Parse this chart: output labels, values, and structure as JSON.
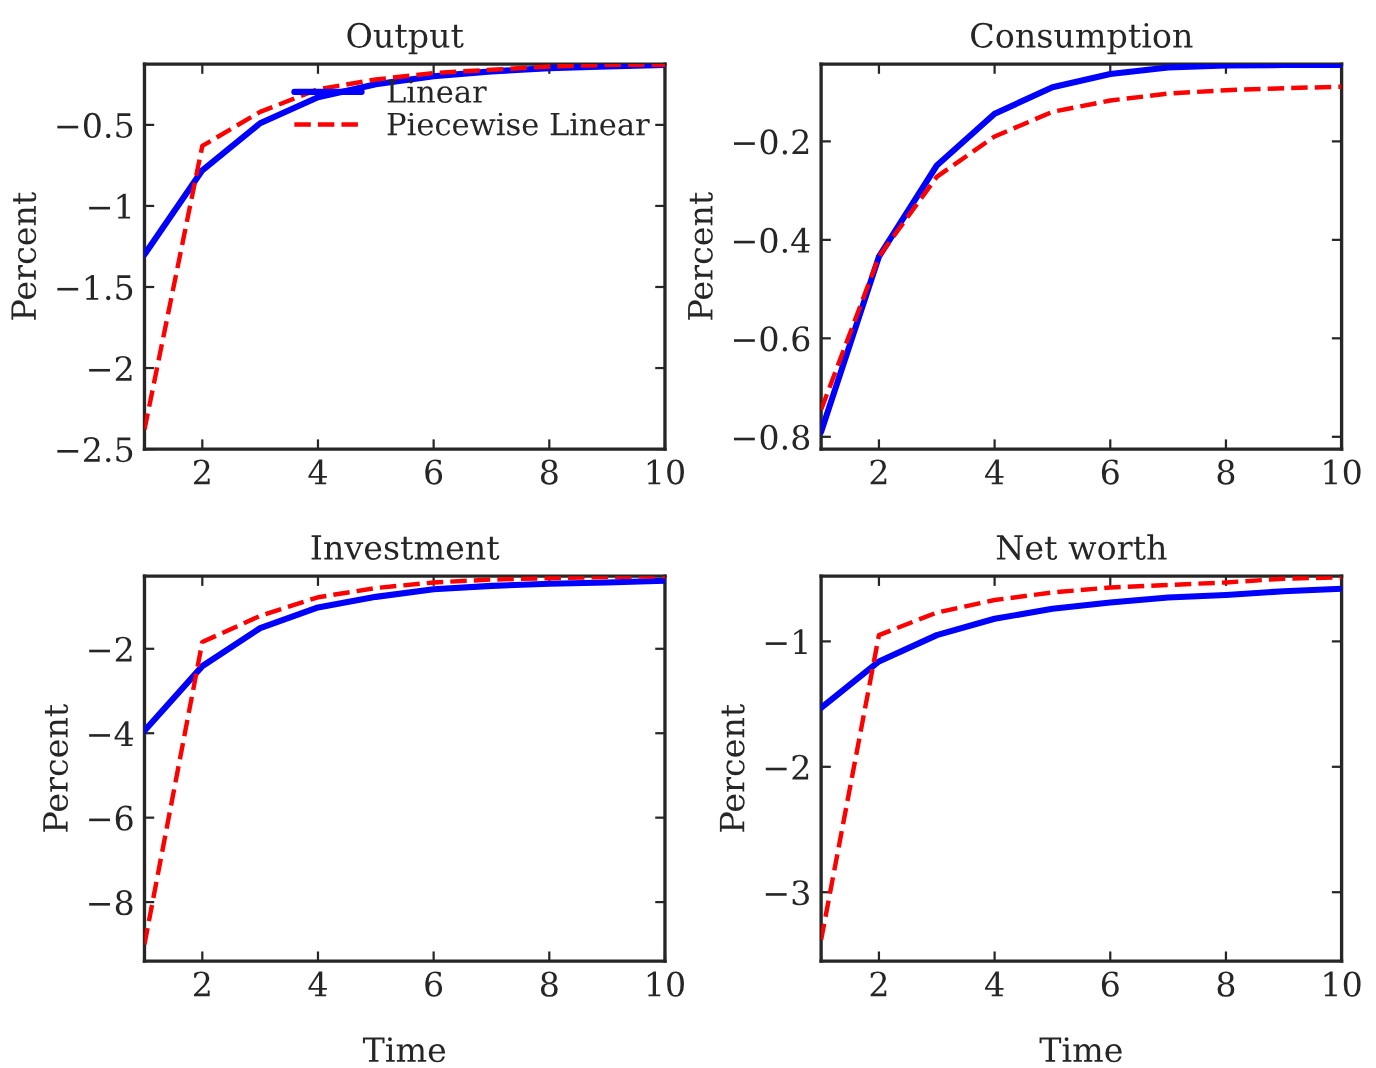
{
  "chart_data": [
    {
      "type": "line",
      "title": "Output",
      "ylabel": "Percent",
      "x": [
        1,
        2,
        3,
        4,
        5,
        6,
        7,
        8,
        9,
        10
      ],
      "xlim": [
        1,
        10
      ],
      "xticks": [
        2,
        4,
        6,
        8,
        10
      ],
      "ylim": [
        -2.5,
        -0.125
      ],
      "yticks": [
        -2.5,
        -2,
        -1.5,
        -1,
        -0.5
      ],
      "legend": "top right",
      "grid": false,
      "series": [
        {
          "name": "Linear",
          "color": "#0000ff",
          "line_style": "solid",
          "values": [
            -1.3,
            -0.78,
            -0.49,
            -0.33,
            -0.25,
            -0.2,
            -0.17,
            -0.15,
            -0.14,
            -0.13
          ]
        },
        {
          "name": "Piecewise Linear",
          "color": "#ff0000",
          "line_style": "dashed",
          "values": [
            -2.38,
            -0.63,
            -0.42,
            -0.28,
            -0.22,
            -0.18,
            -0.16,
            -0.14,
            -0.13,
            -0.13
          ]
        }
      ]
    },
    {
      "type": "line",
      "title": "Consumption",
      "ylabel": "Percent",
      "x": [
        1,
        2,
        3,
        4,
        5,
        6,
        7,
        8,
        9,
        10
      ],
      "xlim": [
        1,
        10
      ],
      "xticks": [
        2,
        4,
        6,
        8,
        10
      ],
      "ylim": [
        -0.825,
        -0.043
      ],
      "yticks": [
        -0.8,
        -0.6,
        -0.4,
        -0.2
      ],
      "grid": false,
      "series": [
        {
          "color": "#0000ff",
          "line_style": "solid",
          "values": [
            -0.79,
            -0.434,
            -0.249,
            -0.144,
            -0.09,
            -0.063,
            -0.05,
            -0.046,
            -0.045,
            -0.045
          ]
        },
        {
          "color": "#ff0000",
          "line_style": "dashed",
          "values": [
            -0.745,
            -0.434,
            -0.272,
            -0.19,
            -0.14,
            -0.117,
            -0.103,
            -0.096,
            -0.092,
            -0.089
          ]
        }
      ]
    },
    {
      "type": "line",
      "title": "Investment",
      "ylabel": "Percent",
      "xlabel": "Time",
      "x": [
        1,
        2,
        3,
        4,
        5,
        6,
        7,
        8,
        9,
        10
      ],
      "xlim": [
        1,
        10
      ],
      "xticks": [
        2,
        4,
        6,
        8,
        10
      ],
      "ylim": [
        -9.4,
        -0.28
      ],
      "yticks": [
        -8,
        -6,
        -4,
        -2
      ],
      "grid": false,
      "series": [
        {
          "color": "#0000ff",
          "line_style": "solid",
          "values": [
            -3.94,
            -2.41,
            -1.51,
            -1.02,
            -0.77,
            -0.59,
            -0.51,
            -0.46,
            -0.43,
            -0.39
          ]
        },
        {
          "color": "#ff0000",
          "line_style": "dashed",
          "values": [
            -9.0,
            -1.84,
            -1.22,
            -0.78,
            -0.56,
            -0.43,
            -0.36,
            -0.33,
            -0.3,
            -0.28
          ]
        }
      ]
    },
    {
      "type": "line",
      "title": "Net worth",
      "ylabel": "Percent",
      "xlabel": "Time",
      "x": [
        1,
        2,
        3,
        4,
        5,
        6,
        7,
        8,
        9,
        10
      ],
      "xlim": [
        1,
        10
      ],
      "xticks": [
        2,
        4,
        6,
        8,
        10
      ],
      "ylim": [
        -3.55,
        -0.48
      ],
      "yticks": [
        -3,
        -2,
        -1
      ],
      "grid": false,
      "series": [
        {
          "color": "#0000ff",
          "line_style": "solid",
          "values": [
            -1.53,
            -1.16,
            -0.95,
            -0.82,
            -0.74,
            -0.69,
            -0.65,
            -0.63,
            -0.6,
            -0.58
          ]
        },
        {
          "color": "#ff0000",
          "line_style": "dashed",
          "values": [
            -3.38,
            -0.95,
            -0.77,
            -0.67,
            -0.61,
            -0.57,
            -0.55,
            -0.53,
            -0.5,
            -0.49
          ]
        }
      ]
    }
  ]
}
